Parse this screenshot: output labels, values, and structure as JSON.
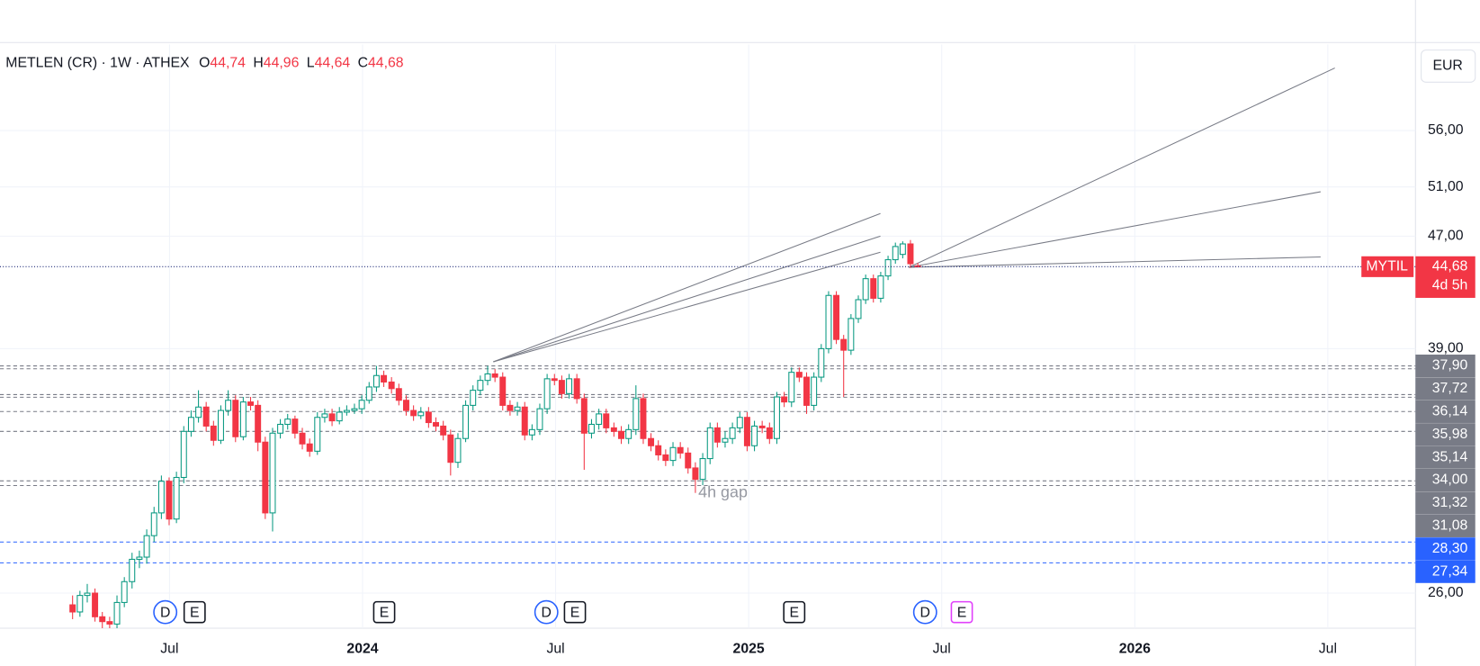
{
  "header": {
    "symbol": "METLEN (CR) · 1W · ATHEX",
    "ohlc_legend": [
      {
        "key": "O",
        "text": "44,74"
      },
      {
        "key": "H",
        "text": "44,96"
      },
      {
        "key": "L",
        "text": "44,64"
      },
      {
        "key": "C",
        "text": "44,68"
      }
    ]
  },
  "currency": "EUR",
  "chart_data": {
    "type": "candlestick",
    "log_scale": true,
    "grid": true,
    "up_color": "#089981",
    "down_color": "#f23645",
    "x": [
      2023.249,
      2023.268,
      2023.287,
      2023.307,
      2023.326,
      2023.345,
      2023.364,
      2023.383,
      2023.403,
      2023.422,
      2023.441,
      2023.46,
      2023.479,
      2023.499,
      2023.518,
      2023.537,
      2023.556,
      2023.575,
      2023.595,
      2023.614,
      2023.633,
      2023.652,
      2023.671,
      2023.691,
      2023.71,
      2023.729,
      2023.748,
      2023.767,
      2023.787,
      2023.806,
      2023.825,
      2023.844,
      2023.863,
      2023.883,
      2023.902,
      2023.921,
      2023.94,
      2023.959,
      2023.979,
      2023.998,
      2024.017,
      2024.036,
      2024.055,
      2024.075,
      2024.094,
      2024.113,
      2024.132,
      2024.151,
      2024.171,
      2024.19,
      2024.209,
      2024.228,
      2024.247,
      2024.267,
      2024.286,
      2024.305,
      2024.324,
      2024.343,
      2024.363,
      2024.382,
      2024.401,
      2024.42,
      2024.439,
      2024.459,
      2024.478,
      2024.497,
      2024.516,
      2024.535,
      2024.555,
      2024.574,
      2024.593,
      2024.612,
      2024.631,
      2024.651,
      2024.67,
      2024.689,
      2024.708,
      2024.727,
      2024.747,
      2024.766,
      2024.785,
      2024.804,
      2024.823,
      2024.843,
      2024.862,
      2024.881,
      2024.9,
      2024.919,
      2024.939,
      2024.958,
      2024.977,
      2024.996,
      2025.015,
      2025.035,
      2025.054,
      2025.073,
      2025.092,
      2025.111,
      2025.131,
      2025.15,
      2025.169,
      2025.188,
      2025.207,
      2025.227,
      2025.246,
      2025.265,
      2025.284,
      2025.303,
      2025.323,
      2025.342,
      2025.361,
      2025.38,
      2025.399,
      2025.419,
      2025.438
    ],
    "ohlc": [
      [
        25.5,
        25.9,
        24.9,
        25.2
      ],
      [
        25.2,
        26.1,
        25.0,
        25.9
      ],
      [
        25.9,
        26.4,
        25.6,
        26.0
      ],
      [
        26.0,
        26.2,
        24.8,
        25.0
      ],
      [
        25.0,
        25.2,
        24.5,
        24.8
      ],
      [
        24.8,
        25.0,
        24.5,
        24.7
      ],
      [
        24.7,
        25.9,
        24.5,
        25.6
      ],
      [
        25.6,
        26.7,
        25.4,
        26.5
      ],
      [
        26.5,
        27.8,
        26.2,
        27.5
      ],
      [
        27.5,
        27.9,
        27.1,
        27.6
      ],
      [
        27.6,
        28.9,
        27.3,
        28.6
      ],
      [
        28.6,
        30.0,
        28.3,
        29.7
      ],
      [
        29.7,
        31.6,
        29.4,
        31.3
      ],
      [
        31.3,
        31.5,
        29.1,
        29.4
      ],
      [
        29.4,
        31.8,
        29.2,
        31.5
      ],
      [
        31.5,
        34.3,
        31.2,
        34.0
      ],
      [
        34.0,
        35.2,
        33.7,
        34.8
      ],
      [
        34.8,
        36.4,
        34.5,
        35.4
      ],
      [
        35.4,
        35.7,
        34.0,
        34.3
      ],
      [
        34.3,
        34.6,
        33.2,
        33.5
      ],
      [
        33.5,
        35.5,
        33.3,
        35.2
      ],
      [
        35.2,
        36.4,
        34.9,
        35.8
      ],
      [
        35.8,
        36.1,
        33.4,
        33.7
      ],
      [
        33.7,
        36.0,
        33.5,
        35.7
      ],
      [
        35.7,
        36.0,
        35.2,
        35.5
      ],
      [
        35.5,
        35.8,
        32.9,
        33.4
      ],
      [
        33.4,
        33.7,
        29.4,
        29.7
      ],
      [
        29.7,
        34.2,
        28.8,
        33.9
      ],
      [
        33.9,
        34.7,
        33.6,
        34.4
      ],
      [
        34.4,
        35.0,
        34.1,
        34.7
      ],
      [
        34.7,
        34.9,
        33.6,
        33.9
      ],
      [
        33.9,
        34.2,
        33.0,
        33.3
      ],
      [
        33.3,
        33.6,
        32.6,
        32.9
      ],
      [
        32.9,
        35.1,
        32.7,
        34.8
      ],
      [
        34.8,
        35.3,
        34.5,
        35.0
      ],
      [
        35.0,
        35.3,
        34.3,
        34.6
      ],
      [
        34.6,
        35.4,
        34.4,
        35.1
      ],
      [
        35.1,
        35.5,
        34.9,
        35.2
      ],
      [
        35.2,
        35.6,
        35.0,
        35.3
      ],
      [
        35.3,
        36.1,
        35.0,
        35.8
      ],
      [
        35.8,
        36.9,
        35.6,
        36.6
      ],
      [
        36.6,
        37.9,
        36.3,
        37.3
      ],
      [
        37.3,
        37.6,
        36.6,
        36.9
      ],
      [
        36.9,
        37.2,
        36.2,
        36.5
      ],
      [
        36.5,
        36.8,
        35.5,
        35.8
      ],
      [
        35.8,
        36.1,
        34.9,
        35.2
      ],
      [
        35.2,
        35.5,
        34.6,
        34.9
      ],
      [
        34.9,
        35.4,
        34.7,
        35.1
      ],
      [
        35.1,
        35.4,
        34.2,
        34.5
      ],
      [
        34.5,
        34.8,
        34.0,
        34.3
      ],
      [
        34.3,
        34.6,
        33.5,
        33.8
      ],
      [
        33.8,
        34.1,
        31.6,
        32.3
      ],
      [
        32.3,
        33.9,
        32.0,
        33.6
      ],
      [
        33.6,
        35.8,
        33.4,
        35.5
      ],
      [
        35.5,
        36.7,
        35.2,
        36.4
      ],
      [
        36.4,
        37.3,
        36.1,
        37.0
      ],
      [
        37.0,
        37.9,
        36.7,
        37.4
      ],
      [
        37.4,
        37.7,
        36.9,
        37.2
      ],
      [
        37.2,
        37.5,
        35.2,
        35.5
      ],
      [
        35.5,
        35.8,
        34.9,
        35.2
      ],
      [
        35.2,
        35.7,
        34.9,
        35.4
      ],
      [
        35.4,
        35.7,
        33.5,
        33.8
      ],
      [
        33.8,
        34.4,
        33.5,
        34.1
      ],
      [
        34.1,
        35.6,
        33.8,
        35.3
      ],
      [
        35.3,
        37.4,
        35.0,
        37.1
      ],
      [
        37.1,
        37.4,
        36.7,
        37.0
      ],
      [
        37.0,
        37.3,
        35.9,
        36.2
      ],
      [
        36.2,
        37.4,
        35.9,
        37.1
      ],
      [
        37.1,
        37.4,
        35.6,
        35.9
      ],
      [
        35.9,
        36.2,
        31.9,
        33.9
      ],
      [
        33.9,
        34.7,
        33.6,
        34.4
      ],
      [
        34.4,
        35.3,
        34.1,
        35.0
      ],
      [
        35.0,
        35.3,
        33.9,
        34.2
      ],
      [
        34.2,
        34.5,
        33.7,
        34.0
      ],
      [
        34.0,
        34.3,
        33.3,
        33.6
      ],
      [
        33.6,
        34.4,
        33.3,
        34.1
      ],
      [
        34.1,
        36.7,
        33.8,
        35.9
      ],
      [
        35.9,
        36.2,
        33.3,
        33.6
      ],
      [
        33.6,
        33.9,
        32.9,
        33.2
      ],
      [
        33.2,
        33.5,
        32.4,
        32.7
      ],
      [
        32.7,
        33.0,
        32.1,
        32.4
      ],
      [
        32.4,
        33.4,
        32.1,
        33.1
      ],
      [
        33.1,
        33.4,
        32.5,
        32.8
      ],
      [
        32.8,
        33.1,
        31.7,
        32.0
      ],
      [
        32.0,
        32.3,
        30.7,
        31.4
      ],
      [
        31.4,
        32.8,
        31.1,
        32.5
      ],
      [
        32.5,
        34.5,
        32.2,
        34.2
      ],
      [
        34.2,
        34.5,
        33.1,
        33.4
      ],
      [
        33.4,
        34.0,
        33.1,
        33.6
      ],
      [
        33.6,
        34.5,
        33.3,
        34.2
      ],
      [
        34.2,
        35.1,
        33.9,
        34.8
      ],
      [
        34.8,
        35.1,
        32.9,
        33.2
      ],
      [
        33.2,
        34.6,
        32.9,
        34.3
      ],
      [
        34.3,
        34.6,
        33.9,
        34.2
      ],
      [
        34.2,
        34.5,
        33.3,
        33.6
      ],
      [
        33.6,
        36.3,
        33.3,
        36.0
      ],
      [
        36.0,
        36.3,
        35.4,
        35.7
      ],
      [
        35.7,
        37.8,
        35.4,
        37.5
      ],
      [
        37.5,
        37.8,
        36.9,
        37.2
      ],
      [
        37.2,
        37.5,
        35.0,
        35.5
      ],
      [
        35.5,
        37.5,
        35.2,
        37.2
      ],
      [
        37.2,
        39.3,
        36.9,
        39.0
      ],
      [
        39.0,
        42.9,
        38.7,
        42.6
      ],
      [
        42.6,
        42.9,
        39.3,
        39.6
      ],
      [
        39.6,
        39.9,
        36.0,
        38.9
      ],
      [
        38.9,
        41.3,
        38.6,
        41.0
      ],
      [
        41.0,
        42.6,
        40.7,
        42.3
      ],
      [
        42.3,
        44.1,
        42.0,
        43.8
      ],
      [
        43.8,
        44.1,
        42.1,
        42.4
      ],
      [
        42.4,
        44.3,
        42.1,
        44.0
      ],
      [
        44.0,
        45.5,
        43.7,
        45.2
      ],
      [
        45.2,
        46.5,
        44.9,
        46.2
      ],
      [
        45.6,
        46.6,
        45.3,
        46.4
      ],
      [
        46.4,
        46.7,
        44.6,
        44.9
      ],
      [
        44.74,
        44.96,
        44.64,
        44.68
      ]
    ],
    "xlim": [
      2023.061,
      2026.727
    ],
    "xticks": [
      {
        "value": 2023.5,
        "label": "Jul"
      },
      2024,
      {
        "value": 2024.5,
        "label": "Jul"
      },
      2025,
      {
        "value": 2025.5,
        "label": "Jul"
      },
      2026,
      {
        "value": 2026.5,
        "label": "Jul"
      }
    ],
    "ylim": [
      24.53,
      64.6
    ],
    "yticks": [
      {
        "value": 26,
        "label": "26,00"
      },
      {
        "value": 39,
        "label": "39,00"
      },
      {
        "value": 47,
        "label": "47,00"
      },
      {
        "value": 51,
        "label": "51,00"
      },
      {
        "value": 56,
        "label": "56,00"
      }
    ],
    "levels": [
      {
        "value": 37.9,
        "label": "37,90",
        "color": "#787b86"
      },
      {
        "value": 37.72,
        "label": "37,72",
        "color": "#787b86"
      },
      {
        "value": 36.14,
        "label": "36,14",
        "color": "#787b86"
      },
      {
        "value": 35.98,
        "label": "35,98",
        "color": "#787b86"
      },
      {
        "value": 35.14,
        "label": "35,14",
        "color": "#787b86"
      },
      {
        "value": 34,
        "label": "34,00",
        "color": "#787b86"
      },
      {
        "value": 31.32,
        "label": "31,32",
        "color": "#787b86"
      },
      {
        "value": 31.08,
        "label": "31,08",
        "color": "#787b86"
      },
      {
        "value": 28.3,
        "label": "28,30",
        "color": "#2962ff"
      },
      {
        "value": 27.34,
        "label": "27,34",
        "color": "#2962ff"
      }
    ],
    "last_price": {
      "name": "MYTIL",
      "value": 44.68,
      "label": "44,68",
      "countdown": "4d 5h",
      "color": "#f23645"
    },
    "events": [
      {
        "x": 2023.489,
        "label": "D",
        "shape": "circle",
        "color": "#2962ff"
      },
      {
        "x": 2023.565,
        "label": "E",
        "shape": "square",
        "color": "#131722"
      },
      {
        "x": 2024.056,
        "label": "E",
        "shape": "square",
        "color": "#131722"
      },
      {
        "x": 2024.476,
        "label": "D",
        "shape": "circle",
        "color": "#2962ff"
      },
      {
        "x": 2024.55,
        "label": "E",
        "shape": "square",
        "color": "#131722"
      },
      {
        "x": 2025.118,
        "label": "E",
        "shape": "square",
        "color": "#131722"
      },
      {
        "x": 2025.457,
        "label": "D",
        "shape": "circle",
        "color": "#2962ff"
      },
      {
        "x": 2025.552,
        "label": "E",
        "shape": "square",
        "color": "#e040fb"
      }
    ],
    "annotation": "4h gap"
  }
}
